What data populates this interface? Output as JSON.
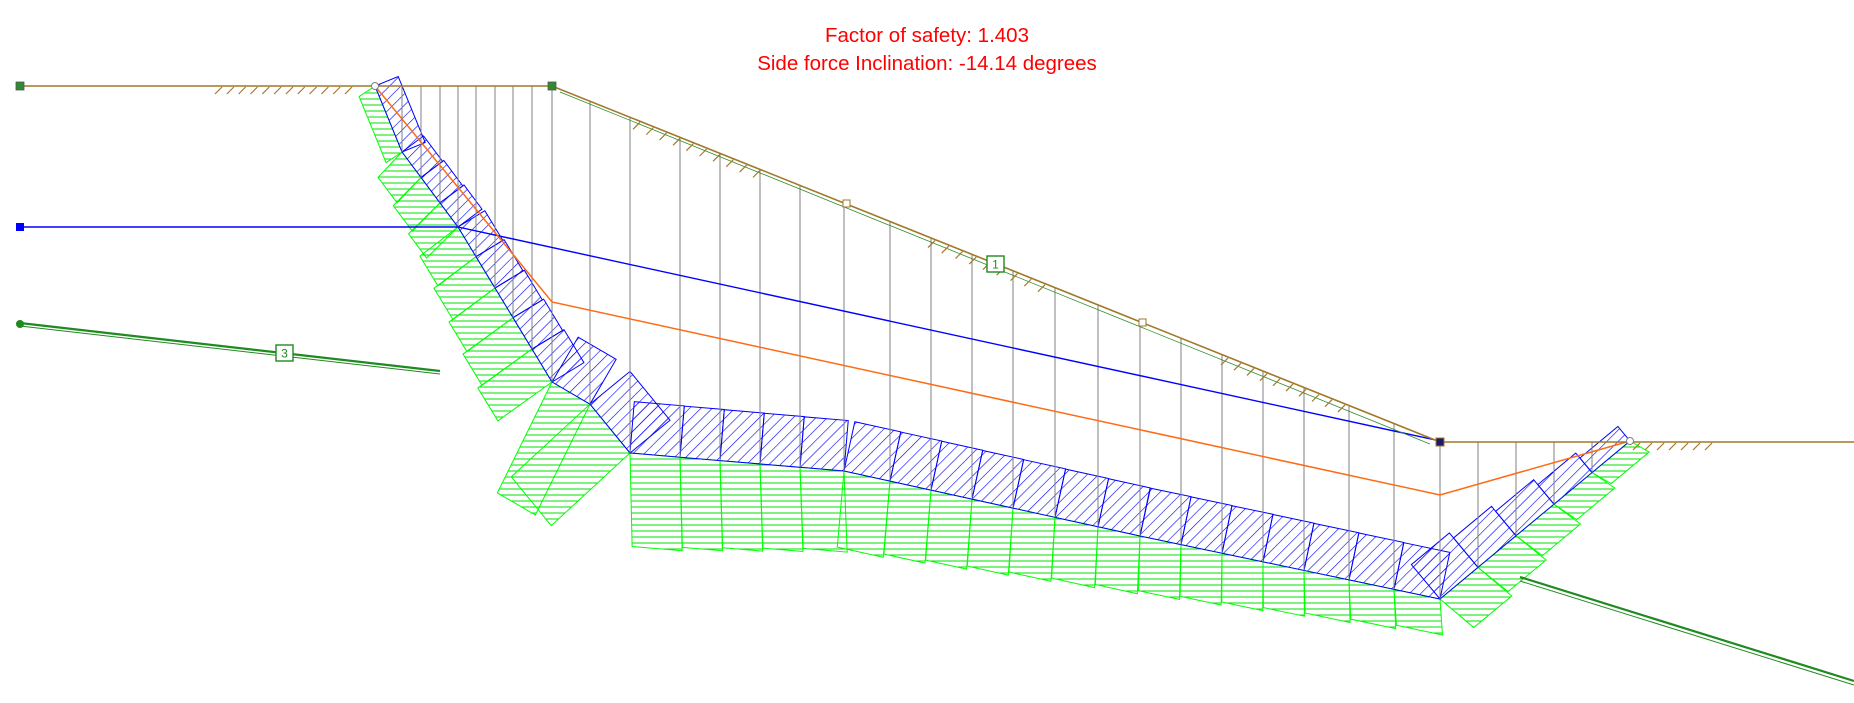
{
  "results": {
    "factor_of_safety": "Factor of safety: 1.403",
    "side_force_inclination": "Side force Inclination: -14.14 degrees"
  },
  "labels": {
    "region_1": "1",
    "region_3": "3"
  },
  "colors": {
    "result_text": "#ff0000",
    "ground_surface": "#a6782d",
    "water_table": "#0000ff",
    "slip_surface": "#ff6600",
    "slice_lines": "#808080",
    "stratum_boundary": "#008000",
    "normal_stress_fill": "#00ff00",
    "slice_base_hatch": "#0000ff"
  }
}
